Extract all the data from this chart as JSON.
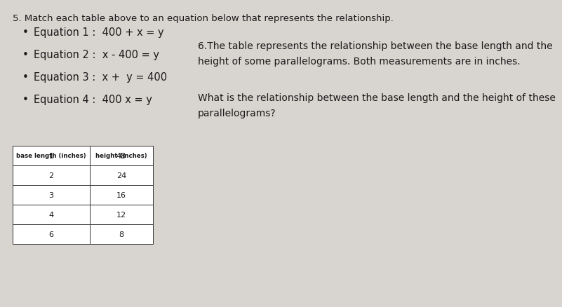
{
  "title": "5. Match each table above to an equation below that represents the relationship.",
  "eq1": "Equation 1 :  400 + x = y",
  "eq2": "Equation 2 :  x - 400 = y",
  "eq3": "Equation 3 :  x +  y = 400",
  "eq4": "Equation 4 :  400 x = y",
  "q6_line1": "6.The table represents the relationship between the base length and the",
  "q6_line2": "height of some parallelograms. Both measurements are in inches.",
  "q6_line3": "What is the relationship between the base length and the height of these",
  "q6_line4": "parallelograms?",
  "table_header": [
    "base length (inches)",
    "height (inches)"
  ],
  "table_data": [
    [
      1,
      48
    ],
    [
      2,
      24
    ],
    [
      3,
      16
    ],
    [
      4,
      12
    ],
    [
      6,
      8
    ]
  ],
  "bg_color": "#d8d4d0",
  "text_color": "#1a1a1a",
  "title_fontsize": 9.5,
  "eq_fontsize": 10.5,
  "q6_fontsize": 10.0,
  "table_header_fontsize": 6.2,
  "table_data_fontsize": 8.0,
  "bullet": "•"
}
